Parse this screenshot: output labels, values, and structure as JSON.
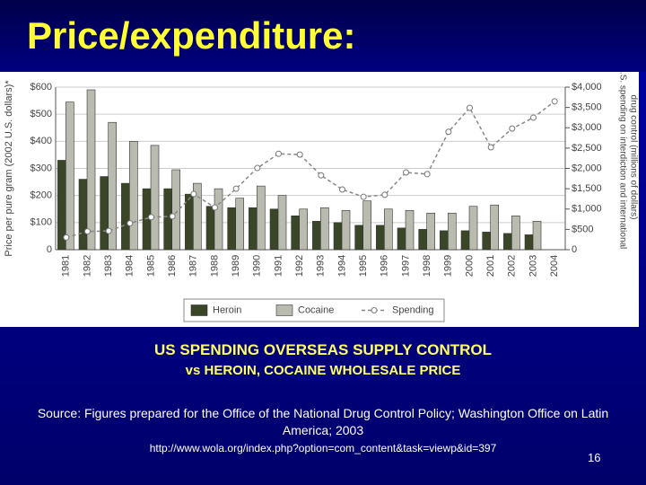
{
  "title": "Price/expenditure:",
  "chart_data": {
    "type": "bar",
    "ylabel": "Price per pure gram (2002 U.S. dollars)*",
    "y2label": [
      "U.S. spending on interdiction and international",
      "drug control (millions of dollars)"
    ],
    "categories": [
      "1981",
      "1982",
      "1983",
      "1984",
      "1985",
      "1986",
      "1987",
      "1988",
      "1989",
      "1990",
      "1991",
      "1992",
      "1993",
      "1994",
      "1995",
      "1996",
      "1997",
      "1998",
      "1999",
      "2000",
      "2001",
      "2002",
      "2003",
      "2004"
    ],
    "series": [
      {
        "name": "Heroin",
        "color": "#3b4628",
        "values": [
          330,
          260,
          270,
          245,
          225,
          225,
          205,
          160,
          155,
          155,
          150,
          125,
          105,
          100,
          90,
          90,
          80,
          75,
          70,
          70,
          65,
          60,
          55,
          null
        ]
      },
      {
        "name": "Cocaine",
        "color": "#b8bbae",
        "values": [
          545,
          590,
          470,
          400,
          385,
          295,
          245,
          225,
          190,
          235,
          200,
          150,
          155,
          145,
          180,
          150,
          145,
          135,
          135,
          160,
          165,
          125,
          105,
          null
        ]
      },
      {
        "name": "Spending",
        "type": "line",
        "axis": "y2",
        "color": "#888888",
        "values": [
          300,
          450,
          460,
          650,
          800,
          820,
          1370,
          1040,
          1500,
          2010,
          2360,
          2340,
          1830,
          1480,
          1300,
          1350,
          1900,
          1860,
          2900,
          3490,
          2520,
          2980,
          3250,
          3650
        ]
      }
    ],
    "ylim": [
      0,
      600
    ],
    "yticks": [
      0,
      {
        "value": 100,
        "label": "$100"
      },
      {
        "value": 200,
        "label": "$200"
      },
      {
        "value": 300,
        "label": "$300"
      },
      {
        "value": 400,
        "label": "$400"
      },
      {
        "value": 500,
        "label": "$500"
      },
      {
        "value": 600,
        "label": "$600"
      }
    ],
    "y2lim": [
      0,
      4000
    ],
    "y2ticks": [
      0,
      {
        "value": 500,
        "label": "$500"
      },
      {
        "value": 1000,
        "label": "$1,000"
      },
      {
        "value": 1500,
        "label": "$1,500"
      },
      {
        "value": 2000,
        "label": "$2,000"
      },
      {
        "value": 2500,
        "label": "$2,500"
      },
      {
        "value": 3000,
        "label": "$3,000"
      },
      {
        "value": 3500,
        "label": "$3,500"
      },
      {
        "value": 4000,
        "label": "$4,000"
      }
    ],
    "grid": true,
    "legend": "bottom"
  },
  "caption": [
    "US SPENDING OVERSEAS SUPPLY CONTROL",
    "vs HEROIN, COCAINE WHOLESALE PRICE"
  ],
  "source": "Source: Figures prepared for the Office of the National Drug Control Policy; Washington Office on Latin America; 2003",
  "url": "http://www.wola.org/index.php?option=com_content&task=viewp&id=397",
  "page_number": 16
}
